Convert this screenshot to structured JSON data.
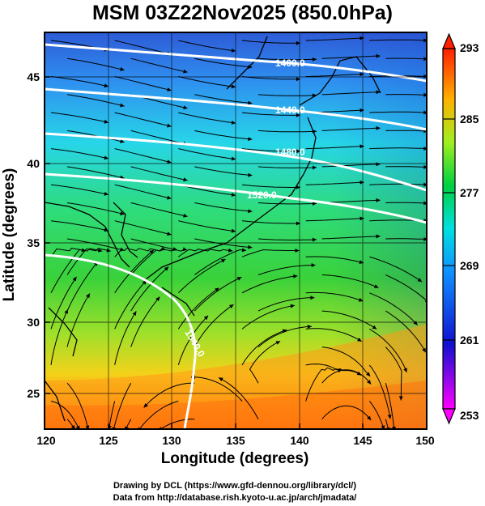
{
  "title": "MSM 03Z22Nov2025 (850.0hPa)",
  "x_axis": {
    "label": "Longitude (degrees)",
    "range": [
      120,
      150
    ],
    "ticks": [
      "120",
      "125",
      "130",
      "135",
      "140",
      "145",
      "150"
    ]
  },
  "y_axis": {
    "label": "Latitude  (degrees)",
    "range": [
      22.6,
      47.8
    ],
    "ticks": [
      "25",
      "30",
      "35",
      "40",
      "45"
    ]
  },
  "colorbar": {
    "min": 253,
    "max": 293,
    "ticks": [
      "293",
      "285",
      "277",
      "269",
      "261",
      "253"
    ],
    "colors": [
      "#ff00ff",
      "#0000ff",
      "#00e0ff",
      "#00d000",
      "#c0f000",
      "#ff9000",
      "#ff2000"
    ]
  },
  "contours": [
    {
      "label": "1400.0"
    },
    {
      "label": "1440.0"
    },
    {
      "label": "1480.0"
    },
    {
      "label": "1520.0"
    },
    {
      "label": "1540.0"
    }
  ],
  "credits": [
    "Drawing by DCL (https://www.gfd-dennou.org/library/dcl/)",
    "Data from http://database.rish.kyoto-u.ac.jp/arch/jmadata/"
  ]
}
